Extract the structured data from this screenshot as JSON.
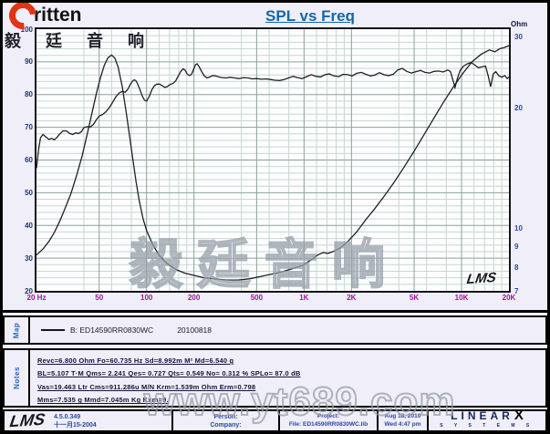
{
  "header": {
    "logo_text": "ritten",
    "cn_text": "毅 廷 音 响",
    "title": "SPL vs Freq"
  },
  "map": {
    "label": "Map",
    "legend": "B: ED14590RR0830WC",
    "date_code": "20100818"
  },
  "notes": {
    "label": "Notes",
    "lines": [
      "Revc=6.800 Ohm  Fo=60.735 Hz  Sd=8.992m M²  Md=6.540 g",
      "BL=5.107 T·M  Qms= 2.241  Qes= 0.727  Qts= 0.549  No= 0.312 %  SPLo= 87.0 dB",
      "Vas=19.463 Ltr  Cms=911.286u M/N  Krm=1.539m Ohm  Erm=0.798",
      "Mms=7.535 g  Mmd=7.045m Kg  Kxm=9."
    ]
  },
  "footer": {
    "app": "LMS",
    "version": "4.5.0.349",
    "version_date": "十一月15-2004",
    "person_label": "Person:",
    "company_label": "Company:",
    "project_label": "Project:",
    "file_label": "File: ED14590RR0830WC.lib",
    "date": "Aug 18, 2010",
    "time": "Wed  4:47 pm",
    "brand_main": "LINEAR",
    "brand_x": "X",
    "brand_sub": "S Y S T E M S"
  },
  "watermarks": {
    "cn": "毅廷音响",
    "url": "www.yt689.com"
  },
  "plot_logo": "LMS",
  "colors": {
    "title_blue": "#1766a6",
    "freq_label_magenta": "#a111a1",
    "db_label_navy": "#223577",
    "ohm_label_blue": "#2747b0",
    "curve": "#1f1f27",
    "grid_minor": "#c6d8cf",
    "grid_major": "#8aa396",
    "logo_red": "#e23313"
  },
  "chart_data": {
    "type": "line",
    "title": "SPL vs Freq",
    "x_axis": {
      "scale": "log",
      "min": 20,
      "max": 20000,
      "unit": "Hz",
      "ticks": [
        {
          "label": "20 Hz",
          "f": 20
        },
        {
          "label": "50",
          "f": 50
        },
        {
          "label": "100",
          "f": 100
        },
        {
          "label": "200",
          "f": 200
        },
        {
          "label": "500",
          "f": 500
        },
        {
          "label": "1K",
          "f": 1000
        },
        {
          "label": "2K",
          "f": 2000
        },
        {
          "label": "5K",
          "f": 5000
        },
        {
          "label": "10K",
          "f": 10000
        },
        {
          "label": "20K",
          "f": 20000
        }
      ]
    },
    "y_left": {
      "label": "dB SPL",
      "min": 20,
      "max": 100,
      "ticks": [
        100,
        90,
        80,
        70,
        60,
        50,
        40,
        30,
        20
      ],
      "minor_step": 2,
      "major_step": 10
    },
    "y_right": {
      "label": "Ohm",
      "scale": "log",
      "min": 7,
      "ticks": [
        30,
        20,
        10,
        9,
        8,
        7
      ]
    },
    "grid": true,
    "legend": {
      "position": "map-row-below-chart",
      "entries": [
        "B: ED14590RR0830WC  20100818"
      ]
    },
    "series": [
      {
        "name": "SPL (B: ED14590RR0830WC 20100818)",
        "axis": "left",
        "points": [
          [
            20,
            57.5
          ],
          [
            20.6,
            63
          ],
          [
            21.2,
            66.8
          ],
          [
            22,
            67.8
          ],
          [
            23,
            67
          ],
          [
            24,
            66.3
          ],
          [
            25,
            66.6
          ],
          [
            26,
            66.2
          ],
          [
            27,
            66.9
          ],
          [
            28,
            67.9
          ],
          [
            29.5,
            68.9
          ],
          [
            31,
            68.9
          ],
          [
            32.5,
            68.1
          ],
          [
            34,
            67.8
          ],
          [
            35.5,
            68.3
          ],
          [
            37,
            68.1
          ],
          [
            38.5,
            68.6
          ],
          [
            40,
            69.9
          ],
          [
            42,
            70.2
          ],
          [
            44,
            70.1
          ],
          [
            46,
            70.9
          ],
          [
            48,
            72.3
          ],
          [
            50,
            73.4
          ],
          [
            52.5,
            73.9
          ],
          [
            55,
            74.7
          ],
          [
            58,
            76
          ],
          [
            61,
            77.7
          ],
          [
            64,
            79.4
          ],
          [
            67,
            80.5
          ],
          [
            70,
            81
          ],
          [
            73,
            80.7
          ],
          [
            76,
            81.6
          ],
          [
            79,
            83.2
          ],
          [
            82,
            84.3
          ],
          [
            84,
            84.5
          ],
          [
            86,
            84.1
          ],
          [
            88,
            83.1
          ],
          [
            91,
            81.4
          ],
          [
            94,
            79.5
          ],
          [
            97,
            78.3
          ],
          [
            100,
            78
          ],
          [
            104,
            79.4
          ],
          [
            108,
            81.5
          ],
          [
            112,
            82.7
          ],
          [
            116,
            83.2
          ],
          [
            121,
            83.2
          ],
          [
            126,
            82.7
          ],
          [
            131,
            82.2
          ],
          [
            136,
            82.5
          ],
          [
            141,
            83.1
          ],
          [
            147,
            83.4
          ],
          [
            153,
            84.2
          ],
          [
            159,
            85.7
          ],
          [
            165,
            87.1
          ],
          [
            171,
            87.9
          ],
          [
            176,
            87.4
          ],
          [
            181,
            86.3
          ],
          [
            187,
            85.8
          ],
          [
            193,
            86.2
          ],
          [
            199,
            87.8
          ],
          [
            205,
            89.2
          ],
          [
            210,
            89.4
          ],
          [
            216,
            88.5
          ],
          [
            223,
            87.2
          ],
          [
            232,
            85.8
          ],
          [
            242,
            85.1
          ],
          [
            252,
            85.4
          ],
          [
            263,
            85.8
          ],
          [
            275,
            85.7
          ],
          [
            288,
            85.4
          ],
          [
            302,
            85.2
          ],
          [
            320,
            85.1
          ],
          [
            340,
            85.3
          ],
          [
            362,
            85.1
          ],
          [
            386,
            84.9
          ],
          [
            412,
            85.2
          ],
          [
            440,
            85.1
          ],
          [
            470,
            84.8
          ],
          [
            502,
            84.9
          ],
          [
            536,
            84.7
          ],
          [
            573,
            84.8
          ],
          [
            612,
            84.6
          ],
          [
            654,
            84.4
          ],
          [
            699,
            84.3
          ],
          [
            747,
            84.6
          ],
          [
            798,
            85.1
          ],
          [
            852,
            85.6
          ],
          [
            910,
            85.2
          ],
          [
            972,
            84.9
          ],
          [
            1040,
            85.5
          ],
          [
            1110,
            86.1
          ],
          [
            1190,
            85.6
          ],
          [
            1270,
            85.4
          ],
          [
            1360,
            86.1
          ],
          [
            1450,
            86.3
          ],
          [
            1550,
            85.7
          ],
          [
            1660,
            85.5
          ],
          [
            1770,
            86.2
          ],
          [
            1890,
            86.1
          ],
          [
            2020,
            85.7
          ],
          [
            2160,
            86.5
          ],
          [
            2310,
            86.8
          ],
          [
            2470,
            86.2
          ],
          [
            2640,
            85.7
          ],
          [
            2820,
            86
          ],
          [
            3010,
            86.7
          ],
          [
            3220,
            86.1
          ],
          [
            3440,
            85.8
          ],
          [
            3680,
            86.2
          ],
          [
            3930,
            87.5
          ],
          [
            4200,
            88
          ],
          [
            4490,
            87.1
          ],
          [
            4800,
            86.6
          ],
          [
            5130,
            87
          ],
          [
            5480,
            87.4
          ],
          [
            5860,
            86.8
          ],
          [
            6260,
            86.6
          ],
          [
            6690,
            87.1
          ],
          [
            7150,
            87.2
          ],
          [
            7640,
            86.9
          ],
          [
            8170,
            87.5
          ],
          [
            8500,
            87.1
          ],
          [
            8800,
            84.6
          ],
          [
            9100,
            82.2
          ],
          [
            9400,
            84.9
          ],
          [
            9800,
            87.4
          ],
          [
            10300,
            88.7
          ],
          [
            10900,
            89.4
          ],
          [
            11500,
            89.8
          ],
          [
            12100,
            89.1
          ],
          [
            12800,
            88.2
          ],
          [
            13500,
            88.5
          ],
          [
            14200,
            88.7
          ],
          [
            14800,
            85.6
          ],
          [
            15300,
            82.4
          ],
          [
            15900,
            86.3
          ],
          [
            16500,
            87
          ],
          [
            17200,
            85.8
          ],
          [
            18000,
            85.3
          ],
          [
            18800,
            85.8
          ],
          [
            19500,
            84.9
          ],
          [
            20000,
            85.4
          ]
        ]
      },
      {
        "name": "Impedance (Ohm)",
        "axis": "right",
        "points": [
          [
            20,
            8.6
          ],
          [
            22,
            8.9
          ],
          [
            24,
            9.3
          ],
          [
            26,
            9.8
          ],
          [
            28,
            10.4
          ],
          [
            30,
            11.1
          ],
          [
            33,
            12.2
          ],
          [
            36,
            13.6
          ],
          [
            39,
            15.2
          ],
          [
            42,
            17.2
          ],
          [
            45,
            19.4
          ],
          [
            48,
            21.7
          ],
          [
            51,
            23.8
          ],
          [
            54,
            25.6
          ],
          [
            57,
            26.7
          ],
          [
            60,
            27.1
          ],
          [
            63,
            26.6
          ],
          [
            66,
            25.3
          ],
          [
            70,
            22.7
          ],
          [
            74,
            19.7
          ],
          [
            78,
            17
          ],
          [
            82,
            14.8
          ],
          [
            86,
            13
          ],
          [
            90,
            11.7
          ],
          [
            95,
            10.6
          ],
          [
            100,
            9.9
          ],
          [
            110,
            9.1
          ],
          [
            120,
            8.6
          ],
          [
            130,
            8.3
          ],
          [
            140,
            8.1
          ],
          [
            155,
            7.9
          ],
          [
            175,
            7.75
          ],
          [
            200,
            7.65
          ],
          [
            230,
            7.55
          ],
          [
            270,
            7.5
          ],
          [
            320,
            7.45
          ],
          [
            380,
            7.45
          ],
          [
            450,
            7.5
          ],
          [
            530,
            7.6
          ],
          [
            620,
            7.7
          ],
          [
            720,
            7.8
          ],
          [
            840,
            7.95
          ],
          [
            980,
            8.1
          ],
          [
            1100,
            8.35
          ],
          [
            1220,
            8.6
          ],
          [
            1320,
            8.72
          ],
          [
            1420,
            8.68
          ],
          [
            1540,
            8.78
          ],
          [
            1700,
            8.95
          ],
          [
            1900,
            9.3
          ],
          [
            2150,
            9.8
          ],
          [
            2450,
            10.5
          ],
          [
            2800,
            11.2
          ],
          [
            3200,
            12
          ],
          [
            3700,
            13
          ],
          [
            4300,
            14.2
          ],
          [
            5000,
            15.6
          ],
          [
            5800,
            17.2
          ],
          [
            6700,
            18.9
          ],
          [
            7700,
            20.7
          ],
          [
            8900,
            22.6
          ],
          [
            10200,
            24.4
          ],
          [
            11700,
            26.1
          ],
          [
            13300,
            27.2
          ],
          [
            15000,
            27.9
          ],
          [
            16300,
            27.6
          ],
          [
            17500,
            28.1
          ],
          [
            18700,
            28.3
          ],
          [
            20000,
            28.6
          ]
        ]
      }
    ]
  }
}
